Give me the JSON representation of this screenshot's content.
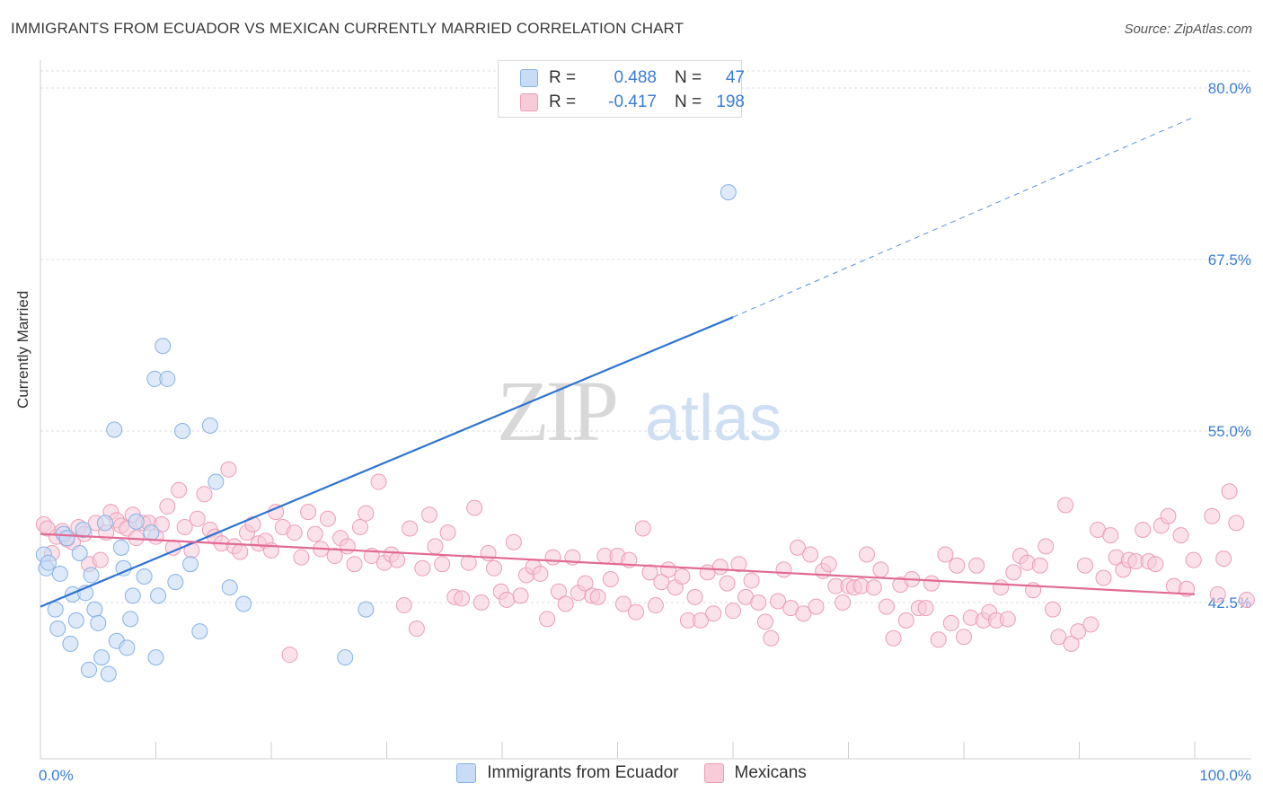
{
  "title": "IMMIGRANTS FROM ECUADOR VS MEXICAN CURRENTLY MARRIED CORRELATION CHART",
  "source": "Source: ZipAtlas.com",
  "watermark": {
    "zip": "ZIP",
    "atlas": "atlas"
  },
  "colors": {
    "blue_fill": "#c8dcf6",
    "blue_stroke": "#86b1e6",
    "blue_line": "#2e74d1",
    "pink_fill": "#f7cbd8",
    "pink_stroke": "#ec9db6",
    "pink_line": "#e06b95",
    "tick_label": "#3b7dd8",
    "grid": "#dddddd"
  },
  "legend_top": [
    {
      "r_label": "R =",
      "r_value": "0.488",
      "n_label": "N =",
      "n_value": "47"
    },
    {
      "r_label": "R =",
      "r_value": "-0.417",
      "n_label": "N =",
      "n_value": "198"
    }
  ],
  "bottom_legend": [
    "Immigrants from Ecuador",
    "Mexicans"
  ],
  "chart_data": {
    "type": "scatter",
    "title": "IMMIGRANTS FROM ECUADOR VS MEXICAN CURRENTLY MARRIED CORRELATION CHART",
    "xlabel": "",
    "ylabel": "Currently Married",
    "xlim": [
      0,
      100
    ],
    "ylim": [
      30,
      81
    ],
    "x_tick_labels": [
      "0.0%",
      "100.0%"
    ],
    "y_ticks": [
      42.5,
      55.0,
      67.5,
      80.0
    ],
    "y_tick_labels": [
      "42.5%",
      "55.0%",
      "67.5%",
      "80.0%"
    ],
    "grid": true,
    "legend": "top-center",
    "series": [
      {
        "name": "Immigrants from Ecuador",
        "R": 0.488,
        "N": 47,
        "trend": {
          "x0": 0,
          "y0": 42.2,
          "x1": 60,
          "y1": 63.3,
          "dash_to_x": 100,
          "dash_to_y": 77.9
        },
        "points": [
          [
            0.3,
            46.0
          ],
          [
            0.5,
            45.0
          ],
          [
            0.7,
            45.4
          ],
          [
            1.3,
            42.0
          ],
          [
            1.5,
            40.6
          ],
          [
            1.7,
            44.6
          ],
          [
            2.0,
            47.5
          ],
          [
            2.3,
            47.2
          ],
          [
            2.6,
            39.5
          ],
          [
            2.8,
            43.1
          ],
          [
            3.1,
            41.2
          ],
          [
            3.4,
            46.1
          ],
          [
            3.7,
            47.8
          ],
          [
            3.9,
            43.2
          ],
          [
            4.2,
            37.6
          ],
          [
            4.4,
            44.5
          ],
          [
            4.7,
            42.0
          ],
          [
            5.0,
            41.0
          ],
          [
            5.3,
            38.5
          ],
          [
            5.6,
            48.3
          ],
          [
            5.9,
            37.3
          ],
          [
            6.4,
            55.1
          ],
          [
            6.6,
            39.7
          ],
          [
            7.0,
            46.5
          ],
          [
            7.2,
            45.0
          ],
          [
            7.5,
            39.2
          ],
          [
            7.8,
            41.3
          ],
          [
            8.0,
            43.0
          ],
          [
            8.3,
            48.4
          ],
          [
            9.0,
            44.4
          ],
          [
            9.6,
            47.6
          ],
          [
            9.9,
            58.8
          ],
          [
            10.0,
            38.5
          ],
          [
            10.2,
            43.0
          ],
          [
            10.6,
            61.2
          ],
          [
            11.0,
            58.8
          ],
          [
            11.7,
            44.0
          ],
          [
            12.3,
            55.0
          ],
          [
            13.0,
            45.3
          ],
          [
            13.8,
            40.4
          ],
          [
            14.7,
            55.4
          ],
          [
            15.2,
            51.3
          ],
          [
            16.4,
            43.6
          ],
          [
            17.6,
            42.4
          ],
          [
            26.4,
            38.5
          ],
          [
            28.2,
            42.0
          ],
          [
            59.6,
            72.4
          ]
        ]
      },
      {
        "name": "Mexicans",
        "R": -0.417,
        "N": 198,
        "trend": {
          "x0": 0,
          "y0": 47.5,
          "x1": 100,
          "y1": 43.1
        },
        "points": [
          [
            0.3,
            48.2
          ],
          [
            0.6,
            47.9
          ],
          [
            1.0,
            46.1
          ],
          [
            1.4,
            47.3
          ],
          [
            1.9,
            47.7
          ],
          [
            2.3,
            47.1
          ],
          [
            2.8,
            46.9
          ],
          [
            3.3,
            48.0
          ],
          [
            3.8,
            47.5
          ],
          [
            4.2,
            45.3
          ],
          [
            4.8,
            48.3
          ],
          [
            5.2,
            45.6
          ],
          [
            5.7,
            47.6
          ],
          [
            6.1,
            49.1
          ],
          [
            6.6,
            48.5
          ],
          [
            7.0,
            48.1
          ],
          [
            7.5,
            47.9
          ],
          [
            8.0,
            48.9
          ],
          [
            8.3,
            47.2
          ],
          [
            8.9,
            48.3
          ],
          [
            9.4,
            48.3
          ],
          [
            10.0,
            47.3
          ],
          [
            10.5,
            48.2
          ],
          [
            11.0,
            49.5
          ],
          [
            11.5,
            46.5
          ],
          [
            12.0,
            50.7
          ],
          [
            12.5,
            48.0
          ],
          [
            13.1,
            46.3
          ],
          [
            13.6,
            48.6
          ],
          [
            14.2,
            50.4
          ],
          [
            14.7,
            47.8
          ],
          [
            15.1,
            47.3
          ],
          [
            15.7,
            46.8
          ],
          [
            16.3,
            52.2
          ],
          [
            16.8,
            46.6
          ],
          [
            17.3,
            46.2
          ],
          [
            17.9,
            47.6
          ],
          [
            18.4,
            48.2
          ],
          [
            18.9,
            46.8
          ],
          [
            19.5,
            47.0
          ],
          [
            20.0,
            46.3
          ],
          [
            20.4,
            49.1
          ],
          [
            21.0,
            48.0
          ],
          [
            21.6,
            38.7
          ],
          [
            22.0,
            47.6
          ],
          [
            22.6,
            45.8
          ],
          [
            23.2,
            49.1
          ],
          [
            23.8,
            47.5
          ],
          [
            24.3,
            46.4
          ],
          [
            24.9,
            48.6
          ],
          [
            25.5,
            45.9
          ],
          [
            26.0,
            47.2
          ],
          [
            26.6,
            46.6
          ],
          [
            27.2,
            45.3
          ],
          [
            27.7,
            48.0
          ],
          [
            28.2,
            49.0
          ],
          [
            28.7,
            45.9
          ],
          [
            29.3,
            51.3
          ],
          [
            29.8,
            45.4
          ],
          [
            30.4,
            46.0
          ],
          [
            30.9,
            45.6
          ],
          [
            31.5,
            42.3
          ],
          [
            32.0,
            47.9
          ],
          [
            32.6,
            40.6
          ],
          [
            33.1,
            45.0
          ],
          [
            33.7,
            48.9
          ],
          [
            34.2,
            46.6
          ],
          [
            34.8,
            45.3
          ],
          [
            35.3,
            47.6
          ],
          [
            35.9,
            42.9
          ],
          [
            36.5,
            42.8
          ],
          [
            37.1,
            45.4
          ],
          [
            37.6,
            49.4
          ],
          [
            38.2,
            42.5
          ],
          [
            38.8,
            46.1
          ],
          [
            39.3,
            45.0
          ],
          [
            39.9,
            43.3
          ],
          [
            40.4,
            42.7
          ],
          [
            41.0,
            46.9
          ],
          [
            41.6,
            43.0
          ],
          [
            42.1,
            44.5
          ],
          [
            42.7,
            45.1
          ],
          [
            43.3,
            44.6
          ],
          [
            43.9,
            41.3
          ],
          [
            44.4,
            45.8
          ],
          [
            44.9,
            43.3
          ],
          [
            45.5,
            42.4
          ],
          [
            46.1,
            45.8
          ],
          [
            46.6,
            43.2
          ],
          [
            47.2,
            43.9
          ],
          [
            47.8,
            43.0
          ],
          [
            48.3,
            42.9
          ],
          [
            48.9,
            45.9
          ],
          [
            49.4,
            44.2
          ],
          [
            50.0,
            45.9
          ],
          [
            50.5,
            42.4
          ],
          [
            51.0,
            45.6
          ],
          [
            51.6,
            41.8
          ],
          [
            52.2,
            47.9
          ],
          [
            52.8,
            44.7
          ],
          [
            53.3,
            42.3
          ],
          [
            53.8,
            44.0
          ],
          [
            54.4,
            44.9
          ],
          [
            55.0,
            43.6
          ],
          [
            55.6,
            44.4
          ],
          [
            56.1,
            41.2
          ],
          [
            56.7,
            42.9
          ],
          [
            57.2,
            41.2
          ],
          [
            57.8,
            44.7
          ],
          [
            58.3,
            41.7
          ],
          [
            58.9,
            45.1
          ],
          [
            59.5,
            43.9
          ],
          [
            60.0,
            41.9
          ],
          [
            60.5,
            45.3
          ],
          [
            61.1,
            42.9
          ],
          [
            61.6,
            44.1
          ],
          [
            62.2,
            42.5
          ],
          [
            62.8,
            41.1
          ],
          [
            63.3,
            39.9
          ],
          [
            63.9,
            42.6
          ],
          [
            64.4,
            44.9
          ],
          [
            65.0,
            42.1
          ],
          [
            65.6,
            46.5
          ],
          [
            66.1,
            41.7
          ],
          [
            66.7,
            46.0
          ],
          [
            67.2,
            42.2
          ],
          [
            67.8,
            44.8
          ],
          [
            68.3,
            45.3
          ],
          [
            68.9,
            43.7
          ],
          [
            69.5,
            42.5
          ],
          [
            70.0,
            43.7
          ],
          [
            70.5,
            43.6
          ],
          [
            71.1,
            43.7
          ],
          [
            71.6,
            46.0
          ],
          [
            72.2,
            43.6
          ],
          [
            72.8,
            44.9
          ],
          [
            73.3,
            42.2
          ],
          [
            73.9,
            39.9
          ],
          [
            74.5,
            43.8
          ],
          [
            75.0,
            41.2
          ],
          [
            75.5,
            44.2
          ],
          [
            76.1,
            42.1
          ],
          [
            76.7,
            42.1
          ],
          [
            77.2,
            43.9
          ],
          [
            77.8,
            39.8
          ],
          [
            78.4,
            46.0
          ],
          [
            78.9,
            41.0
          ],
          [
            79.4,
            45.2
          ],
          [
            80.0,
            40.0
          ],
          [
            80.6,
            41.4
          ],
          [
            81.1,
            45.2
          ],
          [
            81.7,
            41.2
          ],
          [
            82.2,
            41.8
          ],
          [
            82.8,
            41.2
          ],
          [
            83.2,
            43.6
          ],
          [
            83.8,
            41.3
          ],
          [
            84.3,
            44.7
          ],
          [
            84.9,
            45.9
          ],
          [
            85.5,
            45.4
          ],
          [
            86.0,
            43.4
          ],
          [
            86.6,
            45.2
          ],
          [
            87.1,
            46.6
          ],
          [
            87.7,
            42.0
          ],
          [
            88.2,
            40.0
          ],
          [
            88.8,
            49.6
          ],
          [
            89.3,
            39.5
          ],
          [
            89.9,
            40.4
          ],
          [
            90.5,
            45.2
          ],
          [
            91.0,
            40.9
          ],
          [
            91.6,
            47.8
          ],
          [
            92.1,
            44.3
          ],
          [
            92.7,
            47.4
          ],
          [
            93.2,
            45.8
          ],
          [
            93.8,
            44.9
          ],
          [
            94.3,
            45.6
          ],
          [
            94.9,
            45.5
          ],
          [
            95.5,
            47.8
          ],
          [
            96.0,
            45.5
          ],
          [
            96.6,
            45.3
          ],
          [
            97.1,
            48.1
          ],
          [
            97.7,
            48.8
          ],
          [
            98.2,
            43.7
          ],
          [
            98.8,
            47.4
          ],
          [
            99.3,
            43.5
          ],
          [
            99.9,
            45.6
          ],
          [
            101.5,
            48.8
          ],
          [
            102.0,
            43.1
          ],
          [
            102.5,
            45.7
          ],
          [
            103.0,
            50.6
          ],
          [
            103.6,
            48.3
          ],
          [
            104.5,
            42.7
          ]
        ]
      }
    ]
  }
}
